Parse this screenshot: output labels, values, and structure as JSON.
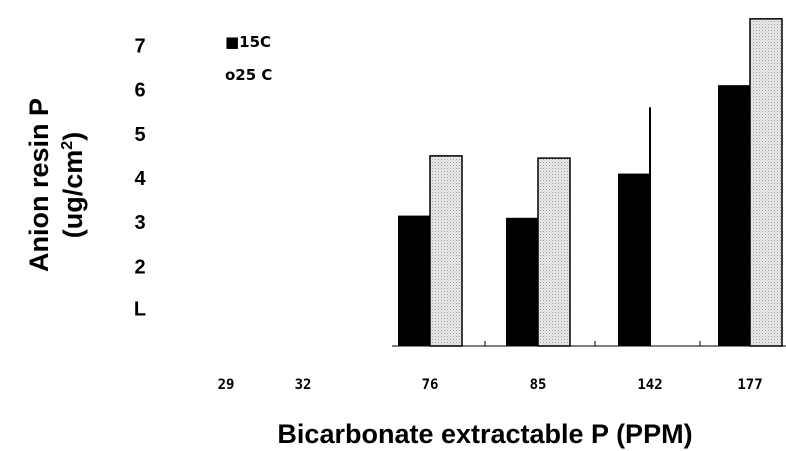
{
  "chart_data": {
    "type": "bar",
    "xlabel": "Bicarbonate extractable P (PPM)",
    "ylabel_line1": "Anion resin P",
    "ylabel_line2_prefix": "(ug/cm",
    "ylabel_line2_sup": "2",
    "ylabel_line2_suffix": ")",
    "categories": [
      "29",
      "32",
      "76",
      "85",
      "142",
      "177"
    ],
    "ytick_labels": [
      "7",
      "6",
      "5",
      "4",
      "3",
      "2",
      "L"
    ],
    "ytick_values": [
      7,
      6,
      5,
      4,
      3,
      2,
      1
    ],
    "ylim": [
      0.2,
      7.8
    ],
    "legend_placement": "top-left",
    "series": [
      {
        "name": "15C",
        "legend_label": "■15C",
        "color": "#000000",
        "values": [
          null,
          null,
          3.15,
          3.1,
          4.1,
          6.1
        ]
      },
      {
        "name": "25 C",
        "legend_label": "o25 C",
        "color": "#e4e4e4",
        "values": [
          null,
          null,
          4.5,
          4.45,
          5.6,
          7.6
        ]
      }
    ]
  }
}
